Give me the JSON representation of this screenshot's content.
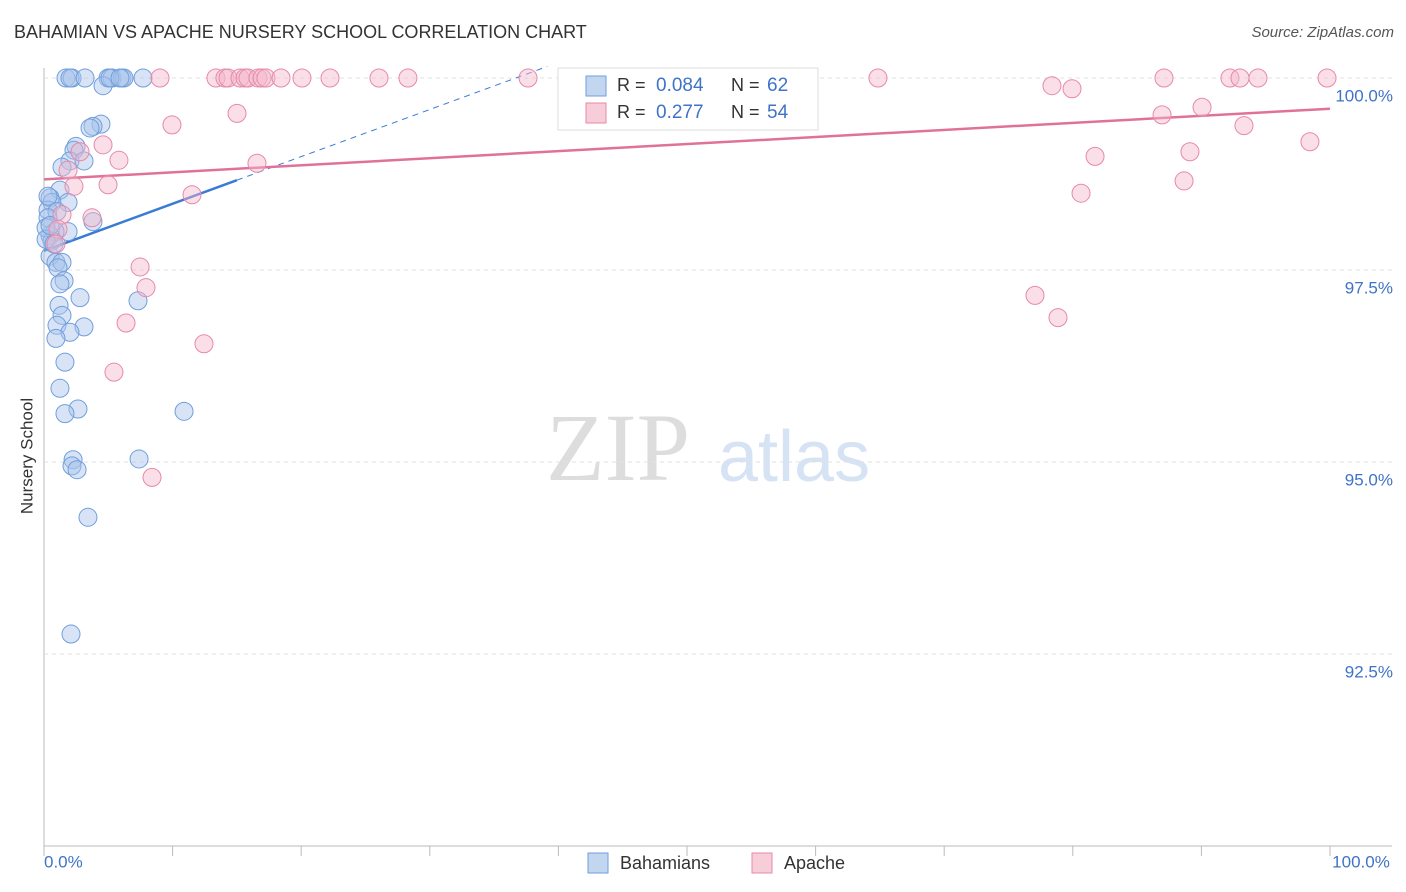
{
  "chart_data": {
    "type": "scatter",
    "title": "BAHAMIAN VS APACHE NURSERY SCHOOL CORRELATION CHART",
    "source": "Source: ZipAtlas.com",
    "y_label": "Nursery School",
    "watermark": [
      "ZIP",
      "atlas"
    ],
    "stat_labels": {
      "r": "R =",
      "n": "N ="
    },
    "xlim": [
      0,
      100
    ],
    "ylim": [
      90,
      100.15
    ],
    "xticks": [
      {
        "value": 0,
        "label": "0.0%"
      },
      {
        "value": 100,
        "label": "100.0%"
      }
    ],
    "xminor_ticks": [
      10,
      20,
      30,
      40,
      50,
      60,
      70,
      80,
      90
    ],
    "yticks": [
      {
        "value": 100,
        "label": "100.0%"
      },
      {
        "value": 97.5,
        "label": "97.5%"
      },
      {
        "value": 95,
        "label": "95.0%"
      },
      {
        "value": 92.5,
        "label": "92.5%"
      }
    ],
    "grid": true,
    "series": [
      {
        "name": "Bahamians",
        "color": "#6f9fdc",
        "fill": "#a9c4ea",
        "line_color": "#3a7bd5",
        "r": 0.084,
        "n": 62,
        "trend": {
          "x": [
            0,
            15
          ],
          "y": [
            97.75,
            98.67
          ],
          "dashed_to_top": true
        },
        "x": [
          1.71,
          2.18,
          2.02,
          3.19,
          4.98,
          5.29,
          6.07,
          6.22,
          7.7,
          4.59,
          5.13,
          5.91,
          4.43,
          3.81,
          3.58,
          2.49,
          2.33,
          2.02,
          1.4,
          3.11,
          1.24,
          0.47,
          1.87,
          0.62,
          0.31,
          1.01,
          0.31,
          3.81,
          1.87,
          0.86,
          0.47,
          0.62,
          0.47,
          0.93,
          1.4,
          1.09,
          1.56,
          1.24,
          2.8,
          7.31,
          1.17,
          1.4,
          1.01,
          3.11,
          2.02,
          0.93,
          1.63,
          1.24,
          2.64,
          1.63,
          10.89,
          2.26,
          7.39,
          2.18,
          2.57,
          3.42,
          2.1,
          0.16,
          0.16,
          0.47,
          0.78,
          0.31
        ],
        "values": [
          100,
          100,
          100,
          100,
          100,
          100,
          100,
          100,
          100,
          99.9,
          100,
          100,
          99.4,
          99.37,
          99.35,
          99.11,
          99.06,
          98.92,
          98.84,
          98.92,
          98.54,
          98.44,
          98.38,
          98.38,
          98.28,
          98.26,
          98.18,
          98.13,
          98.0,
          98.0,
          97.95,
          97.88,
          97.68,
          97.6,
          97.6,
          97.53,
          97.36,
          97.32,
          97.14,
          97.1,
          97.04,
          96.91,
          96.78,
          96.76,
          96.69,
          96.61,
          96.3,
          95.96,
          95.69,
          95.63,
          95.66,
          95.03,
          95.04,
          94.95,
          94.9,
          94.28,
          92.76,
          98.05,
          97.9,
          98.08,
          97.84,
          98.46
        ]
      },
      {
        "name": "Apache",
        "color": "#e68aa8",
        "fill": "#f5b8cb",
        "line_color": "#e0729a",
        "r": 0.277,
        "n": 54,
        "trend": {
          "x": [
            0,
            100
          ],
          "y": [
            98.68,
            99.6
          ],
          "dashed_to_top": false
        },
        "x": [
          9.02,
          13.37,
          14.07,
          14.31,
          15.24,
          15.63,
          15.86,
          16.64,
          16.95,
          17.26,
          18.43,
          20.06,
          22.24,
          26.05,
          28.3,
          37.64,
          64.85,
          78.38,
          79.94,
          87.09,
          92.22,
          93.0,
          94.4,
          99.77,
          90.05,
          86.94,
          15.01,
          9.95,
          93.31,
          4.59,
          98.44,
          81.73,
          89.11,
          5.83,
          16.56,
          1.87,
          2.8,
          2.33,
          4.98,
          88.65,
          80.64,
          11.51,
          3.73,
          1.4,
          7.47,
          7.93,
          77.06,
          78.85,
          6.38,
          12.44,
          5.44,
          8.4,
          1.09,
          0.93
        ],
        "values": [
          100,
          100,
          100,
          100,
          100,
          100,
          100,
          100,
          100,
          100,
          100,
          100,
          100,
          100,
          100,
          100,
          100,
          99.9,
          99.86,
          100,
          100,
          100,
          100,
          100,
          99.62,
          99.52,
          99.54,
          99.39,
          99.38,
          99.13,
          99.17,
          98.98,
          99.04,
          98.93,
          98.89,
          98.8,
          99.04,
          98.59,
          98.61,
          98.66,
          98.5,
          98.48,
          98.18,
          98.22,
          97.54,
          97.27,
          97.17,
          96.88,
          96.81,
          96.54,
          96.17,
          94.8,
          98.03,
          97.84
        ]
      }
    ]
  }
}
